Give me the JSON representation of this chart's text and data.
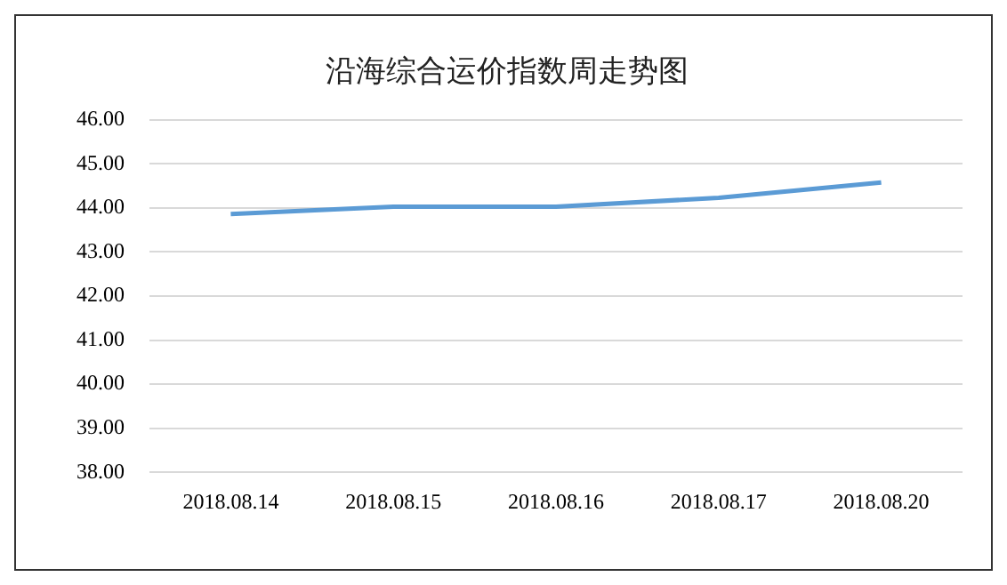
{
  "chart_data": {
    "type": "line",
    "title": "沿海综合运价指数周走势图",
    "categories": [
      "2018.08.14",
      "2018.08.15",
      "2018.08.16",
      "2018.08.17",
      "2018.08.20"
    ],
    "series": [
      {
        "color": "#5b9bd5",
        "values": [
          43.86,
          44.03,
          44.03,
          44.23,
          44.58
        ]
      }
    ],
    "ylim": [
      38,
      46
    ],
    "yticks": [
      {
        "value": 38,
        "label": "38.00"
      },
      {
        "value": 39,
        "label": "39.00"
      },
      {
        "value": 40,
        "label": "40.00"
      },
      {
        "value": 41,
        "label": "41.00"
      },
      {
        "value": 42,
        "label": "42.00"
      },
      {
        "value": 43,
        "label": "43.00"
      },
      {
        "value": 44,
        "label": "44.00"
      },
      {
        "value": 45,
        "label": "45.00"
      },
      {
        "value": 46,
        "label": "46.00"
      }
    ],
    "grid": "y",
    "legend": false,
    "marker": "none",
    "line_style": "solid"
  }
}
